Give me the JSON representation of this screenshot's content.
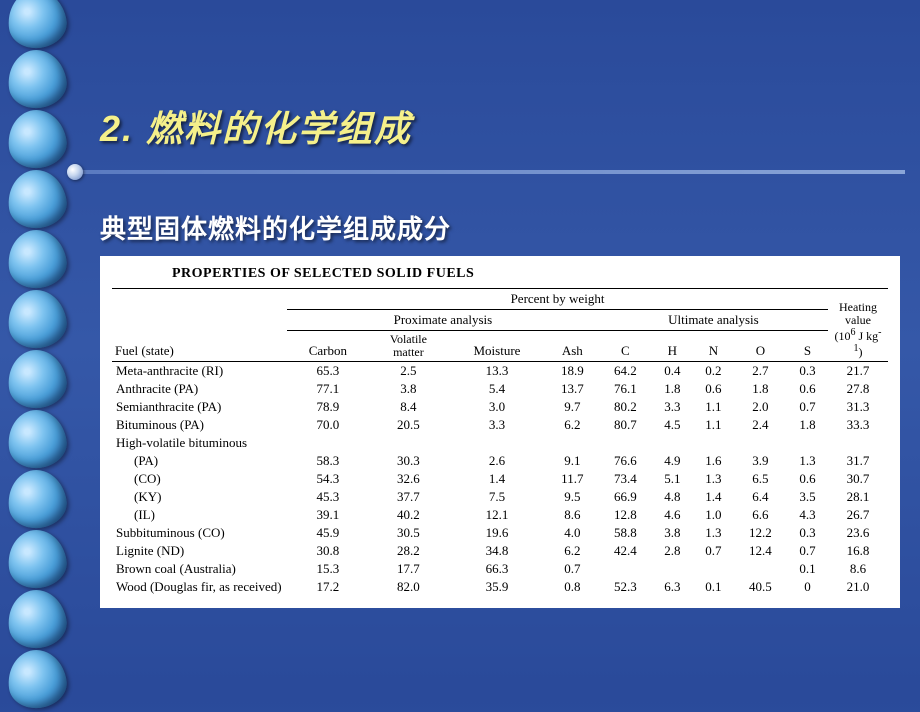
{
  "slide": {
    "title": "2. 燃料的化学组成",
    "subtitle": "典型固体燃料的化学组成成分",
    "background_color": "#2a4a9a",
    "title_color": "#f5f08a",
    "subtitle_color": "#ffffff"
  },
  "table": {
    "caption": "PROPERTIES OF SELECTED SOLID FUELS",
    "super_header": "Percent by weight",
    "group_headers": {
      "proximate": "Proximate analysis",
      "ultimate": "Ultimate analysis"
    },
    "columns": {
      "fuel": "Fuel (state)",
      "carbon": "Carbon",
      "volatile": "Volatile\nmatter",
      "moisture": "Moisture",
      "ash": "Ash",
      "c": "C",
      "h": "H",
      "n": "N",
      "o": "O",
      "s": "S",
      "heating": "Heating\nvalue\n(10⁶ J kg⁻¹)"
    },
    "rows": [
      {
        "fuel": "Meta-anthracite (RI)",
        "carbon": "65.3",
        "volatile": "2.5",
        "moisture": "13.3",
        "ash": "18.9",
        "c": "64.2",
        "h": "0.4",
        "n": "0.2",
        "o": "2.7",
        "s": "0.3",
        "heating": "21.7",
        "indent": false
      },
      {
        "fuel": "Anthracite (PA)",
        "carbon": "77.1",
        "volatile": "3.8",
        "moisture": "5.4",
        "ash": "13.7",
        "c": "76.1",
        "h": "1.8",
        "n": "0.6",
        "o": "1.8",
        "s": "0.6",
        "heating": "27.8",
        "indent": false
      },
      {
        "fuel": "Semianthracite (PA)",
        "carbon": "78.9",
        "volatile": "8.4",
        "moisture": "3.0",
        "ash": "9.7",
        "c": "80.2",
        "h": "3.3",
        "n": "1.1",
        "o": "2.0",
        "s": "0.7",
        "heating": "31.3",
        "indent": false
      },
      {
        "fuel": "Bituminous (PA)",
        "carbon": "70.0",
        "volatile": "20.5",
        "moisture": "3.3",
        "ash": "6.2",
        "c": "80.7",
        "h": "4.5",
        "n": "1.1",
        "o": "2.4",
        "s": "1.8",
        "heating": "33.3",
        "indent": false
      },
      {
        "fuel": "High-volatile bituminous",
        "carbon": "",
        "volatile": "",
        "moisture": "",
        "ash": "",
        "c": "",
        "h": "",
        "n": "",
        "o": "",
        "s": "",
        "heating": "",
        "indent": false
      },
      {
        "fuel": "(PA)",
        "carbon": "58.3",
        "volatile": "30.3",
        "moisture": "2.6",
        "ash": "9.1",
        "c": "76.6",
        "h": "4.9",
        "n": "1.6",
        "o": "3.9",
        "s": "1.3",
        "heating": "31.7",
        "indent": true
      },
      {
        "fuel": "(CO)",
        "carbon": "54.3",
        "volatile": "32.6",
        "moisture": "1.4",
        "ash": "11.7",
        "c": "73.4",
        "h": "5.1",
        "n": "1.3",
        "o": "6.5",
        "s": "0.6",
        "heating": "30.7",
        "indent": true
      },
      {
        "fuel": "(KY)",
        "carbon": "45.3",
        "volatile": "37.7",
        "moisture": "7.5",
        "ash": "9.5",
        "c": "66.9",
        "h": "4.8",
        "n": "1.4",
        "o": "6.4",
        "s": "3.5",
        "heating": "28.1",
        "indent": true
      },
      {
        "fuel": "(IL)",
        "carbon": "39.1",
        "volatile": "40.2",
        "moisture": "12.1",
        "ash": "8.6",
        "c": "12.8",
        "h": "4.6",
        "n": "1.0",
        "o": "6.6",
        "s": "4.3",
        "heating": "26.7",
        "indent": true
      },
      {
        "fuel": "Subbituminous (CO)",
        "carbon": "45.9",
        "volatile": "30.5",
        "moisture": "19.6",
        "ash": "4.0",
        "c": "58.8",
        "h": "3.8",
        "n": "1.3",
        "o": "12.2",
        "s": "0.3",
        "heating": "23.6",
        "indent": false
      },
      {
        "fuel": "Lignite (ND)",
        "carbon": "30.8",
        "volatile": "28.2",
        "moisture": "34.8",
        "ash": "6.2",
        "c": "42.4",
        "h": "2.8",
        "n": "0.7",
        "o": "12.4",
        "s": "0.7",
        "heating": "16.8",
        "indent": false
      },
      {
        "fuel": "Brown coal (Australia)",
        "carbon": "15.3",
        "volatile": "17.7",
        "moisture": "66.3",
        "ash": "0.7",
        "c": "",
        "h": "",
        "n": "",
        "o": "",
        "s": "0.1",
        "heating": "8.6",
        "indent": false
      },
      {
        "fuel": "Wood (Douglas fir, as received)",
        "carbon": "17.2",
        "volatile": "82.0",
        "moisture": "35.9",
        "ash": "0.8",
        "c": "52.3",
        "h": "6.3",
        "n": "0.1",
        "o": "40.5",
        "s": "0",
        "heating": "21.0",
        "indent": false
      }
    ]
  }
}
